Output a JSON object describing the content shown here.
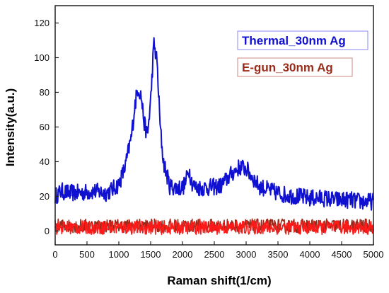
{
  "chart_data": {
    "type": "line",
    "xlabel": "Raman shift(1/cm)",
    "ylabel": "Intensity(a.u.)",
    "xlim": [
      0,
      5000
    ],
    "ylim": [
      -8,
      130
    ],
    "x_ticks": [
      0,
      500,
      1000,
      1500,
      2000,
      2500,
      3000,
      3500,
      4000,
      4500,
      5000
    ],
    "y_ticks": [
      0,
      20,
      40,
      60,
      80,
      100,
      120
    ],
    "grid": false,
    "legend_position": "top-right",
    "series": [
      {
        "name": "Thermal_30nm Ag",
        "color": "#1010d0",
        "noise": 5,
        "x": [
          0,
          100,
          200,
          400,
          600,
          800,
          900,
          1000,
          1100,
          1200,
          1250,
          1300,
          1350,
          1400,
          1450,
          1500,
          1550,
          1600,
          1650,
          1700,
          1800,
          1900,
          2000,
          2050,
          2100,
          2150,
          2200,
          2400,
          2600,
          2700,
          2800,
          2900,
          3000,
          3100,
          3200,
          3400,
          3600,
          3800,
          4000,
          4200,
          4400,
          4600,
          4800,
          5000
        ],
        "y": [
          20,
          23,
          22,
          22,
          23,
          22,
          24,
          27,
          37,
          55,
          72,
          83,
          78,
          62,
          55,
          75,
          108,
          98,
          60,
          40,
          26,
          25,
          25,
          28,
          36,
          28,
          25,
          25,
          26,
          30,
          34,
          37,
          36,
          31,
          26,
          23,
          21,
          20,
          19,
          19,
          18,
          18,
          17,
          17
        ]
      },
      {
        "name": "E-gun_30nm Ag",
        "color": "#9a2a1a",
        "noise": 4,
        "x": [
          0,
          5000
        ],
        "y": [
          3,
          3
        ]
      },
      {
        "name": "",
        "color": "#ff1a1a",
        "noise": 4,
        "x": [
          0,
          5000
        ],
        "y": [
          2,
          2
        ]
      }
    ]
  }
}
